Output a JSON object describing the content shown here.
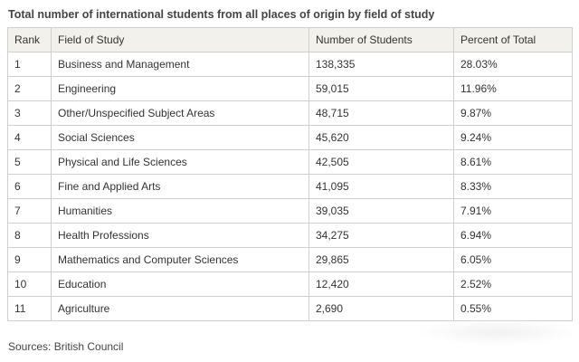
{
  "title": "Total number of international students from all places of origin by field of study",
  "table": {
    "headers": [
      "Rank",
      "Field of Study",
      "Number of Students",
      "Percent of Total"
    ],
    "rows": [
      [
        "1",
        "Business and Management",
        "138,335",
        "28.03%"
      ],
      [
        "2",
        "Engineering",
        "59,015",
        "11.96%"
      ],
      [
        "3",
        "Other/Unspecified Subject Areas",
        "48,715",
        "9.87%"
      ],
      [
        "4",
        "Social Sciences",
        "45,620",
        "9.24%"
      ],
      [
        "5",
        "Physical and Life Sciences",
        "42,505",
        "8.61%"
      ],
      [
        "6",
        "Fine and Applied Arts",
        "41,095",
        "8.33%"
      ],
      [
        "7",
        "Humanities",
        "39,035",
        "7.91%"
      ],
      [
        "8",
        "Health Professions",
        "34,275",
        "6.94%"
      ],
      [
        "9",
        "Mathematics and Computer Sciences",
        "29,865",
        "6.05%"
      ],
      [
        "10",
        "Education",
        "12,420",
        "2.52%"
      ],
      [
        "11",
        "Agriculture",
        "2,690",
        "0.55%"
      ]
    ]
  },
  "source": "Sources: British Council"
}
